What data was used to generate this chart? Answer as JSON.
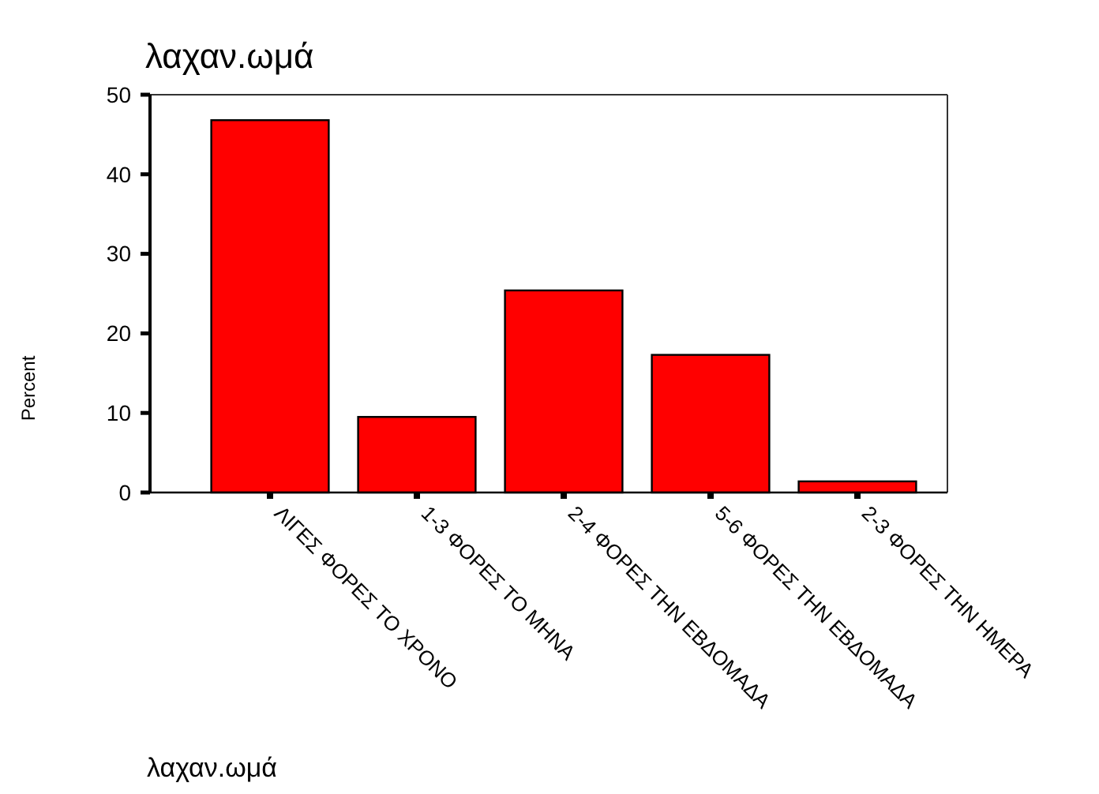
{
  "chart_data": {
    "type": "bar",
    "title": "λαχαν.ωμά",
    "xlabel": "λαχαν.ωμά",
    "ylabel": "Percent",
    "categories": [
      "ΛΙΓΕΣ ΦΟΡΕΣ ΤΟ ΧΡΟΝΟ",
      "1-3 ΦΟΡΕΣ ΤΟ ΜΗΝΑ",
      "2-4 ΦΟΡΕΣ ΤΗΝ ΕΒΔΟΜΑΔΑ",
      "5-6 ΦΟΡΕΣ ΤΗΝ ΕΒΔΟΜΑΔΑ",
      "2-3 ΦΟΡΕΣ ΤΗΝ ΗΜΕΡΑ"
    ],
    "values": [
      46.8,
      9.5,
      25.4,
      17.3,
      1.4
    ],
    "color": "#ff0000",
    "ylim": [
      0,
      50
    ],
    "yticks": [
      0,
      10,
      20,
      30,
      40,
      50
    ],
    "grid": false
  }
}
